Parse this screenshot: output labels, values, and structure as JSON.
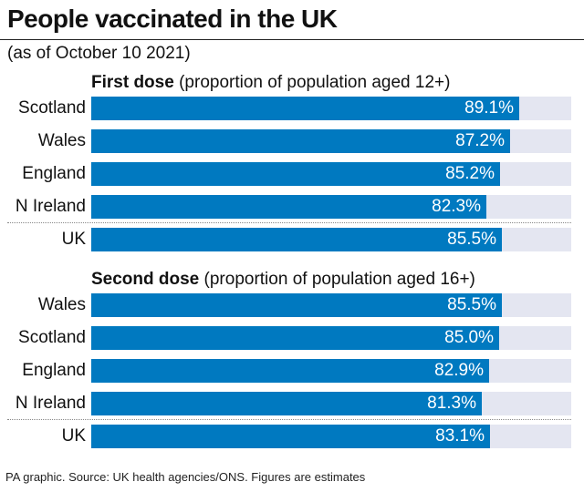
{
  "title": "People vaccinated in the UK",
  "subtitle": "(as of October 10 2021)",
  "footer": "PA graphic. Source: UK health agencies/ONS. Figures are estimates",
  "colors": {
    "bar": "#0079c0",
    "track": "#e4e6f1",
    "text": "#111111"
  },
  "chart_data": [
    {
      "type": "bar",
      "orientation": "horizontal",
      "title_bold": "First dose",
      "title_rest": "(proportion of population aged 12+)",
      "xlim": [
        0,
        100
      ],
      "unit": "%",
      "categories": [
        "Scotland",
        "Wales",
        "England",
        "N Ireland",
        "UK"
      ],
      "values": [
        89.1,
        87.2,
        85.2,
        82.3,
        85.5
      ],
      "labels": [
        "89.1%",
        "87.2%",
        "85.2%",
        "82.3%",
        "85.5%"
      ]
    },
    {
      "type": "bar",
      "orientation": "horizontal",
      "title_bold": "Second dose",
      "title_rest": "(proportion of population aged 16+)",
      "xlim": [
        0,
        100
      ],
      "unit": "%",
      "categories": [
        "Wales",
        "Scotland",
        "England",
        "N Ireland",
        "UK"
      ],
      "values": [
        85.5,
        85.0,
        82.9,
        81.3,
        83.1
      ],
      "labels": [
        "85.5%",
        "85.0%",
        "82.9%",
        "81.3%",
        "83.1%"
      ]
    }
  ]
}
